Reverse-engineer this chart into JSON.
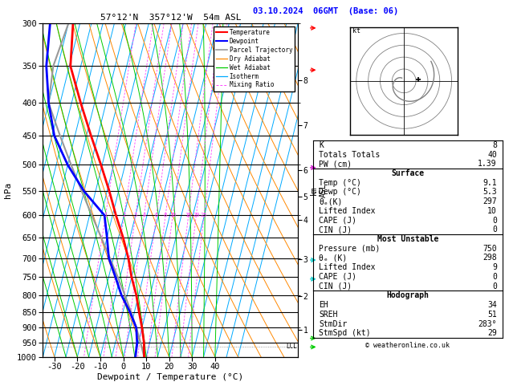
{
  "title_left": "57°12'N  357°12'W  54m ASL",
  "title_right": "03.10.2024  06GMT  (Base: 06)",
  "xlabel": "Dewpoint / Temperature (°C)",
  "pressure_levels": [
    300,
    350,
    400,
    450,
    500,
    550,
    600,
    650,
    700,
    750,
    800,
    850,
    900,
    950,
    1000
  ],
  "temp_ticks": [
    -30,
    -20,
    -10,
    0,
    10,
    20,
    30,
    40
  ],
  "p_min": 300,
  "p_max": 1000,
  "x_min": -35,
  "x_max": 40,
  "skew_factor": 30,
  "isotherm_color": "#00aaff",
  "dry_adiabat_color": "#ff8800",
  "wet_adiabat_color": "#00cc00",
  "mixing_ratio_color": "#ff44ff",
  "temp_color": "#ff0000",
  "dewp_color": "#0000ff",
  "parcel_color": "#999999",
  "background_color": "#ffffff",
  "temp_data_p": [
    1000,
    950,
    900,
    850,
    800,
    750,
    700,
    650,
    600,
    550,
    500,
    450,
    400,
    350,
    300
  ],
  "temp_data_t": [
    9.1,
    7.5,
    5.0,
    2.0,
    -1.0,
    -5.0,
    -8.5,
    -13.0,
    -18.5,
    -24.0,
    -30.5,
    -38.0,
    -46.0,
    -54.5,
    -58.0
  ],
  "dewp_data_p": [
    1000,
    950,
    900,
    850,
    800,
    750,
    700,
    650,
    600,
    550,
    500,
    450,
    400,
    350,
    300
  ],
  "dewp_data_t": [
    5.3,
    4.5,
    2.5,
    -2.0,
    -7.5,
    -12.0,
    -17.0,
    -20.0,
    -23.5,
    -35.0,
    -45.0,
    -54.0,
    -60.0,
    -65.0,
    -68.0
  ],
  "parcel_data_p": [
    1000,
    950,
    900,
    850,
    800,
    750,
    700,
    650,
    600,
    550,
    500,
    450,
    400,
    350,
    300
  ],
  "parcel_data_t": [
    9.1,
    6.0,
    2.5,
    -1.5,
    -6.0,
    -11.0,
    -16.5,
    -22.5,
    -29.0,
    -36.0,
    -43.5,
    -51.5,
    -60.0,
    -62.0,
    -60.0
  ],
  "lcl_pressure": 963,
  "mixing_ratios": [
    1,
    2,
    3,
    4,
    6,
    8,
    10,
    16,
    20,
    25
  ],
  "km_ticks": [
    1,
    2,
    3,
    4,
    5,
    6,
    7,
    8
  ],
  "km_pressures": [
    907,
    802,
    703,
    609,
    560,
    510,
    433,
    368
  ],
  "wind_arrows": [
    {
      "p": 305,
      "color": "#ff0000"
    },
    {
      "p": 355,
      "color": "#ff0000"
    },
    {
      "p": 505,
      "color": "#cc00cc"
    },
    {
      "p": 705,
      "color": "#00cccc"
    },
    {
      "p": 755,
      "color": "#00cccc"
    },
    {
      "p": 935,
      "color": "#00cc00"
    },
    {
      "p": 965,
      "color": "#00cc00"
    }
  ],
  "info_K": 8,
  "info_TT": 40,
  "info_PW": "1.39",
  "surf_temp": "9.1",
  "surf_dewp": "5.3",
  "surf_theta_e": "297",
  "surf_li": "10",
  "surf_cape": "0",
  "surf_cin": "0",
  "mu_pressure": "750",
  "mu_theta_e": "298",
  "mu_li": "9",
  "mu_cape": "0",
  "mu_cin": "0",
  "hodo_EH": "34",
  "hodo_SREH": "51",
  "hodo_StmDir": "283°",
  "hodo_StmSpd": "29",
  "copyright": "© weatheronline.co.uk"
}
